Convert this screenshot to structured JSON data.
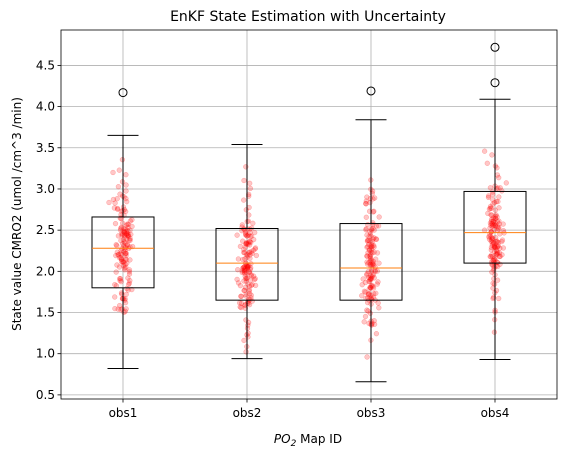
{
  "chart_data": {
    "type": "boxplot",
    "title": "EnKF State Estimation with Uncertainty",
    "xlabel_main": "PO",
    "xlabel_sub": "2",
    "xlabel_rest": " Map ID",
    "ylabel": "State value CMRO2 (umol /cm^3 /min)",
    "ylim": [
      0.45,
      4.93
    ],
    "yticks": [
      "0.5",
      "1.0",
      "1.5",
      "2.0",
      "2.5",
      "3.0",
      "3.5",
      "4.0",
      "4.5"
    ],
    "grid": true,
    "categories": [
      "obs1",
      "obs2",
      "obs3",
      "obs4"
    ],
    "boxes": [
      {
        "name": "obs1",
        "whisker_low": 0.82,
        "q1": 1.8,
        "median": 2.28,
        "q3": 2.66,
        "whisker_high": 3.65,
        "outliers": [
          4.17
        ]
      },
      {
        "name": "obs2",
        "whisker_low": 0.94,
        "q1": 1.65,
        "median": 2.1,
        "q3": 2.52,
        "whisker_high": 3.54,
        "outliers": []
      },
      {
        "name": "obs3",
        "whisker_low": 0.66,
        "q1": 1.65,
        "median": 2.04,
        "q3": 2.58,
        "whisker_high": 3.84,
        "outliers": [
          4.19
        ]
      },
      {
        "name": "obs4",
        "whisker_low": 0.93,
        "q1": 2.1,
        "median": 2.47,
        "q3": 2.97,
        "whisker_high": 4.09,
        "outliers": [
          4.29,
          4.72
        ]
      }
    ],
    "jitter_points_per_box": 150,
    "colors": {
      "box": "#000000",
      "median": "#ff7f0e",
      "points": "#ff0000",
      "grid": "#b0b0b0"
    }
  }
}
